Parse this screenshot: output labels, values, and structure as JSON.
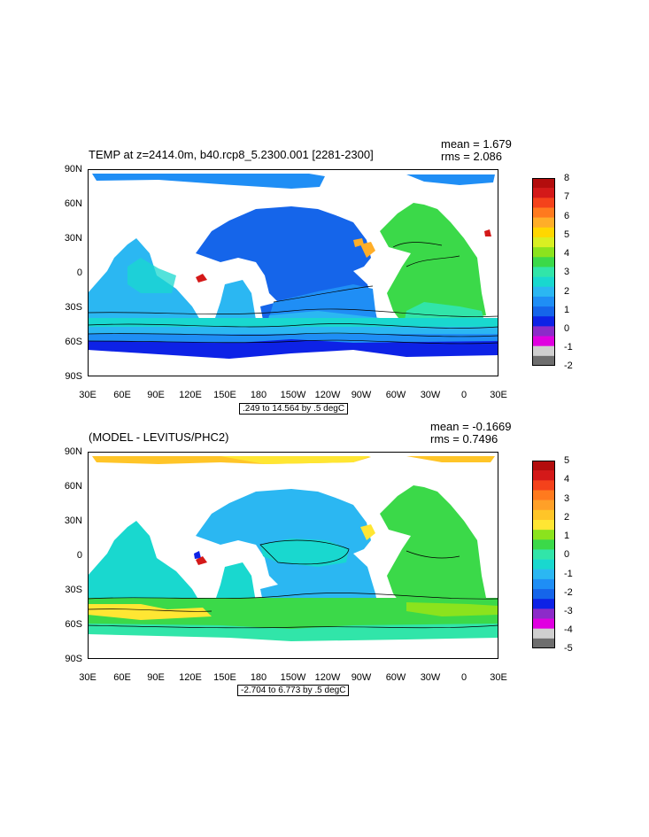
{
  "map1": {
    "title": "TEMP at z=2414.0m, b40.rcp8_5.2300.001 [2281-2300]",
    "mean_text": "mean = 1.679",
    "rms_text": "rms = 2.086",
    "range_text": ".249 to 14.564 by .5 degC",
    "colorbar_labels": [
      "8",
      "7",
      "6",
      "5",
      "4",
      "3",
      "2",
      "1",
      "0",
      "-1",
      "-2"
    ]
  },
  "map2": {
    "title": "(MODEL - LEVITUS/PHC2)",
    "mean_text": "mean = -0.1669",
    "rms_text": "rms = 0.7496",
    "range_text": "-2.704 to 6.773 by .5 degC",
    "colorbar_labels": [
      "5",
      "4",
      "3",
      "2",
      "1",
      "0",
      "-1",
      "-2",
      "-3",
      "-4",
      "-5"
    ]
  },
  "lat_labels": [
    "90N",
    "60N",
    "30N",
    "0",
    "30S",
    "60S",
    "90S"
  ],
  "lon_labels": [
    "30E",
    "60E",
    "90E",
    "120E",
    "150E",
    "180",
    "150W",
    "120W",
    "90W",
    "60W",
    "30W",
    "0",
    "30E"
  ],
  "colors": {
    "map1_palette": [
      "#6e6e6e",
      "#cfcfcf",
      "#e000e0",
      "#8c2bc9",
      "#0d22e6",
      "#1565ea",
      "#1f8ef5",
      "#2bb7f2",
      "#19d8cf",
      "#31e5a9",
      "#3bd949",
      "#8be31d",
      "#d9ef22",
      "#ffd700",
      "#ffae28",
      "#ff7a1e",
      "#f4421b",
      "#d41919",
      "#b30d0d"
    ],
    "map2_palette": [
      "#6e6e6e",
      "#cfcfcf",
      "#e000e0",
      "#8c2bc9",
      "#0d22e6",
      "#1565ea",
      "#1f8ef5",
      "#2bb7f2",
      "#19d8cf",
      "#31e5a9",
      "#3bd949",
      "#8be31d",
      "#ffe633",
      "#ffc528",
      "#ffa028",
      "#ff7a1e",
      "#f4421b",
      "#d41919",
      "#b30d0d"
    ]
  }
}
